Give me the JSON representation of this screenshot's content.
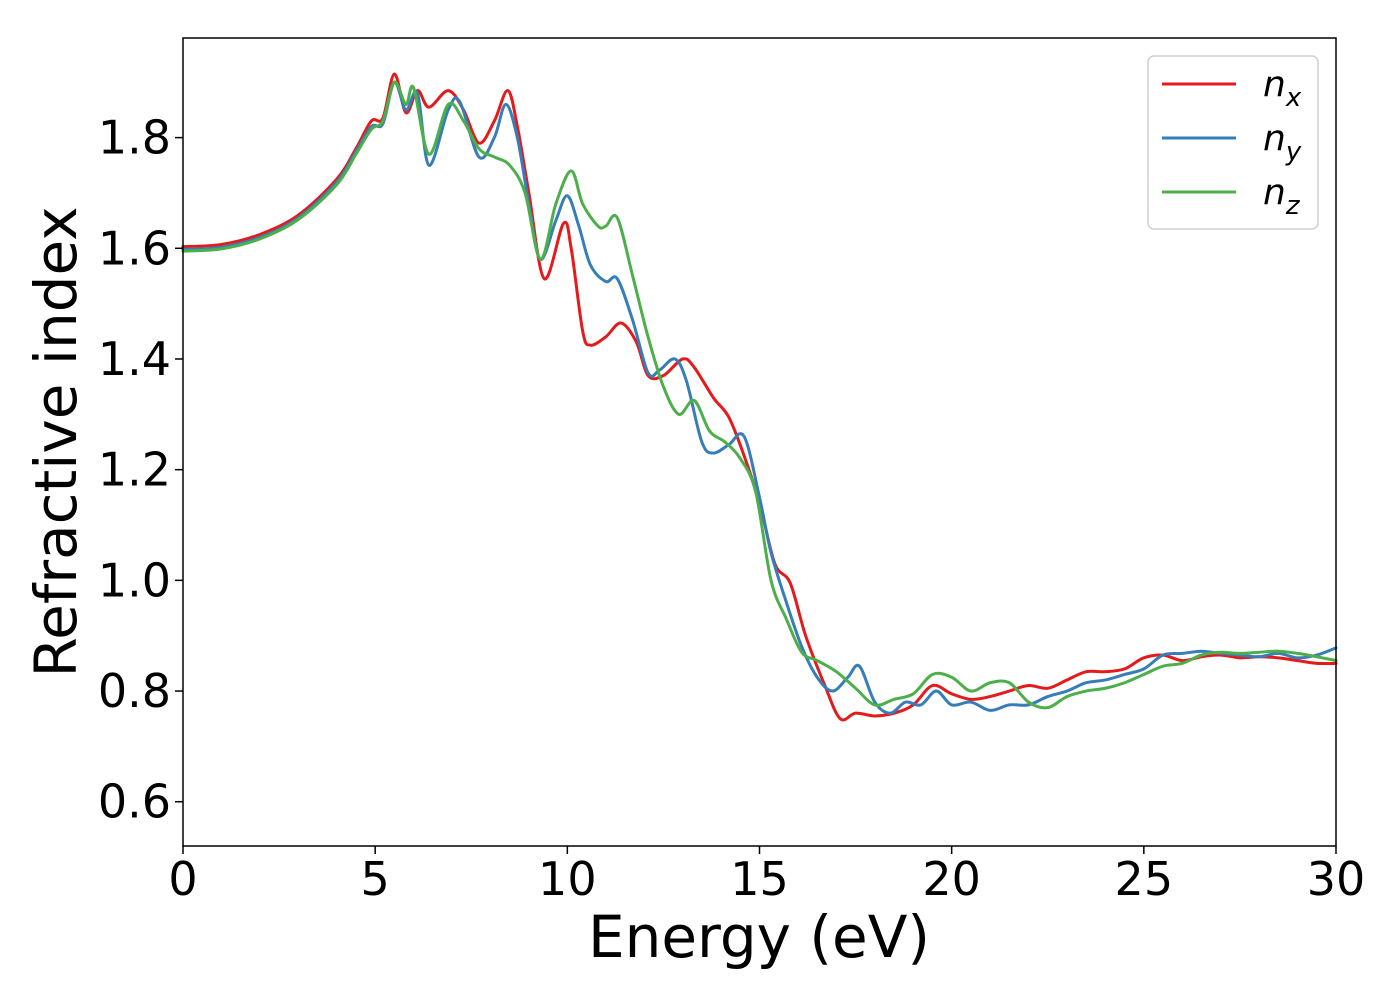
{
  "chart_data": {
    "type": "line",
    "title": "",
    "xlabel": "Energy (eV)",
    "ylabel": "Refractive index",
    "xlim": [
      0,
      30
    ],
    "ylim": [
      0.52,
      1.98
    ],
    "xticks": [
      0,
      5,
      10,
      15,
      20,
      25,
      30
    ],
    "xtick_labels": [
      "0",
      "5",
      "10",
      "15",
      "20",
      "25",
      "30"
    ],
    "yticks": [
      0.6,
      0.8,
      1.0,
      1.2,
      1.4,
      1.6,
      1.8
    ],
    "ytick_labels": [
      "0.6",
      "0.8",
      "1.0",
      "1.2",
      "1.4",
      "1.6",
      "1.8"
    ],
    "grid": false,
    "legend_position": "top-right",
    "series": [
      {
        "name": "n_x",
        "label_base": "n",
        "label_sub": "x",
        "color": "#e41a1c",
        "points": [
          [
            0,
            1.603
          ],
          [
            1,
            1.607
          ],
          [
            2,
            1.625
          ],
          [
            3,
            1.66
          ],
          [
            4,
            1.725
          ],
          [
            4.5,
            1.78
          ],
          [
            4.9,
            1.83
          ],
          [
            5.2,
            1.835
          ],
          [
            5.5,
            1.915
          ],
          [
            5.8,
            1.845
          ],
          [
            6.1,
            1.885
          ],
          [
            6.4,
            1.855
          ],
          [
            6.9,
            1.885
          ],
          [
            7.3,
            1.85
          ],
          [
            7.7,
            1.79
          ],
          [
            8.1,
            1.83
          ],
          [
            8.45,
            1.885
          ],
          [
            8.7,
            1.82
          ],
          [
            9.0,
            1.7
          ],
          [
            9.4,
            1.545
          ],
          [
            9.9,
            1.645
          ],
          [
            10.1,
            1.6
          ],
          [
            10.4,
            1.45
          ],
          [
            10.6,
            1.425
          ],
          [
            11.0,
            1.44
          ],
          [
            11.4,
            1.465
          ],
          [
            11.8,
            1.43
          ],
          [
            12.1,
            1.37
          ],
          [
            12.5,
            1.37
          ],
          [
            13.0,
            1.4
          ],
          [
            13.3,
            1.385
          ],
          [
            13.8,
            1.33
          ],
          [
            14.2,
            1.295
          ],
          [
            14.6,
            1.225
          ],
          [
            15.0,
            1.14
          ],
          [
            15.4,
            1.03
          ],
          [
            15.8,
            0.995
          ],
          [
            16.2,
            0.9
          ],
          [
            16.7,
            0.81
          ],
          [
            17.1,
            0.75
          ],
          [
            17.5,
            0.76
          ],
          [
            18.0,
            0.755
          ],
          [
            18.5,
            0.76
          ],
          [
            19.0,
            0.775
          ],
          [
            19.5,
            0.81
          ],
          [
            20.0,
            0.795
          ],
          [
            20.5,
            0.785
          ],
          [
            21.0,
            0.79
          ],
          [
            21.5,
            0.8
          ],
          [
            22.0,
            0.81
          ],
          [
            22.5,
            0.805
          ],
          [
            23.0,
            0.82
          ],
          [
            23.5,
            0.835
          ],
          [
            24.0,
            0.835
          ],
          [
            24.5,
            0.84
          ],
          [
            25.0,
            0.86
          ],
          [
            25.5,
            0.865
          ],
          [
            26.0,
            0.855
          ],
          [
            26.5,
            0.862
          ],
          [
            27.0,
            0.865
          ],
          [
            27.5,
            0.86
          ],
          [
            28.0,
            0.862
          ],
          [
            28.5,
            0.86
          ],
          [
            29.0,
            0.855
          ],
          [
            29.5,
            0.85
          ],
          [
            30.0,
            0.85
          ]
        ]
      },
      {
        "name": "n_y",
        "label_base": "n",
        "label_sub": "y",
        "color": "#377eb8",
        "points": [
          [
            0,
            1.598
          ],
          [
            1,
            1.602
          ],
          [
            2,
            1.62
          ],
          [
            3,
            1.655
          ],
          [
            4,
            1.72
          ],
          [
            4.5,
            1.775
          ],
          [
            4.9,
            1.82
          ],
          [
            5.2,
            1.825
          ],
          [
            5.5,
            1.9
          ],
          [
            5.8,
            1.85
          ],
          [
            6.1,
            1.88
          ],
          [
            6.4,
            1.75
          ],
          [
            6.9,
            1.85
          ],
          [
            7.2,
            1.865
          ],
          [
            7.7,
            1.765
          ],
          [
            8.1,
            1.8
          ],
          [
            8.4,
            1.86
          ],
          [
            8.7,
            1.8
          ],
          [
            9.0,
            1.68
          ],
          [
            9.3,
            1.58
          ],
          [
            9.7,
            1.65
          ],
          [
            10.0,
            1.695
          ],
          [
            10.3,
            1.64
          ],
          [
            10.6,
            1.57
          ],
          [
            11.0,
            1.54
          ],
          [
            11.3,
            1.545
          ],
          [
            11.7,
            1.47
          ],
          [
            12.1,
            1.375
          ],
          [
            12.4,
            1.38
          ],
          [
            12.8,
            1.4
          ],
          [
            13.1,
            1.36
          ],
          [
            13.5,
            1.25
          ],
          [
            13.8,
            1.23
          ],
          [
            14.2,
            1.245
          ],
          [
            14.6,
            1.26
          ],
          [
            15.0,
            1.15
          ],
          [
            15.3,
            1.05
          ],
          [
            15.7,
            0.96
          ],
          [
            16.1,
            0.88
          ],
          [
            16.5,
            0.825
          ],
          [
            16.9,
            0.8
          ],
          [
            17.3,
            0.825
          ],
          [
            17.6,
            0.845
          ],
          [
            18.0,
            0.78
          ],
          [
            18.4,
            0.76
          ],
          [
            18.8,
            0.78
          ],
          [
            19.2,
            0.775
          ],
          [
            19.6,
            0.8
          ],
          [
            20.0,
            0.775
          ],
          [
            20.5,
            0.78
          ],
          [
            21.0,
            0.765
          ],
          [
            21.5,
            0.775
          ],
          [
            22.0,
            0.775
          ],
          [
            22.5,
            0.79
          ],
          [
            23.0,
            0.8
          ],
          [
            23.5,
            0.815
          ],
          [
            24.0,
            0.82
          ],
          [
            24.5,
            0.83
          ],
          [
            25.0,
            0.84
          ],
          [
            25.5,
            0.865
          ],
          [
            26.0,
            0.868
          ],
          [
            26.5,
            0.872
          ],
          [
            27.0,
            0.868
          ],
          [
            27.5,
            0.865
          ],
          [
            28.0,
            0.862
          ],
          [
            28.5,
            0.868
          ],
          [
            29.0,
            0.86
          ],
          [
            29.5,
            0.865
          ],
          [
            30.0,
            0.878
          ]
        ]
      },
      {
        "name": "n_z",
        "label_base": "n",
        "label_sub": "z",
        "color": "#4daf4a",
        "points": [
          [
            0,
            1.595
          ],
          [
            1,
            1.599
          ],
          [
            2,
            1.617
          ],
          [
            3,
            1.652
          ],
          [
            4,
            1.715
          ],
          [
            4.5,
            1.77
          ],
          [
            4.9,
            1.815
          ],
          [
            5.2,
            1.83
          ],
          [
            5.5,
            1.9
          ],
          [
            5.8,
            1.86
          ],
          [
            6.0,
            1.89
          ],
          [
            6.4,
            1.77
          ],
          [
            6.9,
            1.86
          ],
          [
            7.3,
            1.83
          ],
          [
            7.7,
            1.78
          ],
          [
            8.1,
            1.765
          ],
          [
            8.5,
            1.75
          ],
          [
            8.9,
            1.7
          ],
          [
            9.3,
            1.58
          ],
          [
            9.7,
            1.68
          ],
          [
            10.1,
            1.74
          ],
          [
            10.4,
            1.68
          ],
          [
            10.8,
            1.64
          ],
          [
            11.0,
            1.64
          ],
          [
            11.3,
            1.655
          ],
          [
            11.7,
            1.55
          ],
          [
            12.1,
            1.44
          ],
          [
            12.5,
            1.35
          ],
          [
            12.9,
            1.3
          ],
          [
            13.3,
            1.325
          ],
          [
            13.7,
            1.27
          ],
          [
            14.1,
            1.25
          ],
          [
            14.5,
            1.22
          ],
          [
            14.9,
            1.16
          ],
          [
            15.3,
            1.0
          ],
          [
            15.7,
            0.93
          ],
          [
            16.1,
            0.87
          ],
          [
            16.5,
            0.855
          ],
          [
            17.0,
            0.835
          ],
          [
            17.5,
            0.805
          ],
          [
            18.0,
            0.775
          ],
          [
            18.5,
            0.785
          ],
          [
            19.0,
            0.795
          ],
          [
            19.5,
            0.83
          ],
          [
            20.0,
            0.825
          ],
          [
            20.5,
            0.8
          ],
          [
            21.0,
            0.815
          ],
          [
            21.5,
            0.815
          ],
          [
            22.0,
            0.78
          ],
          [
            22.5,
            0.77
          ],
          [
            23.0,
            0.79
          ],
          [
            23.5,
            0.8
          ],
          [
            24.0,
            0.805
          ],
          [
            24.5,
            0.815
          ],
          [
            25.0,
            0.83
          ],
          [
            25.5,
            0.845
          ],
          [
            26.0,
            0.85
          ],
          [
            26.5,
            0.865
          ],
          [
            27.0,
            0.87
          ],
          [
            27.5,
            0.868
          ],
          [
            28.0,
            0.87
          ],
          [
            28.5,
            0.872
          ],
          [
            29.0,
            0.868
          ],
          [
            29.5,
            0.862
          ],
          [
            30.0,
            0.855
          ]
        ]
      }
    ]
  }
}
